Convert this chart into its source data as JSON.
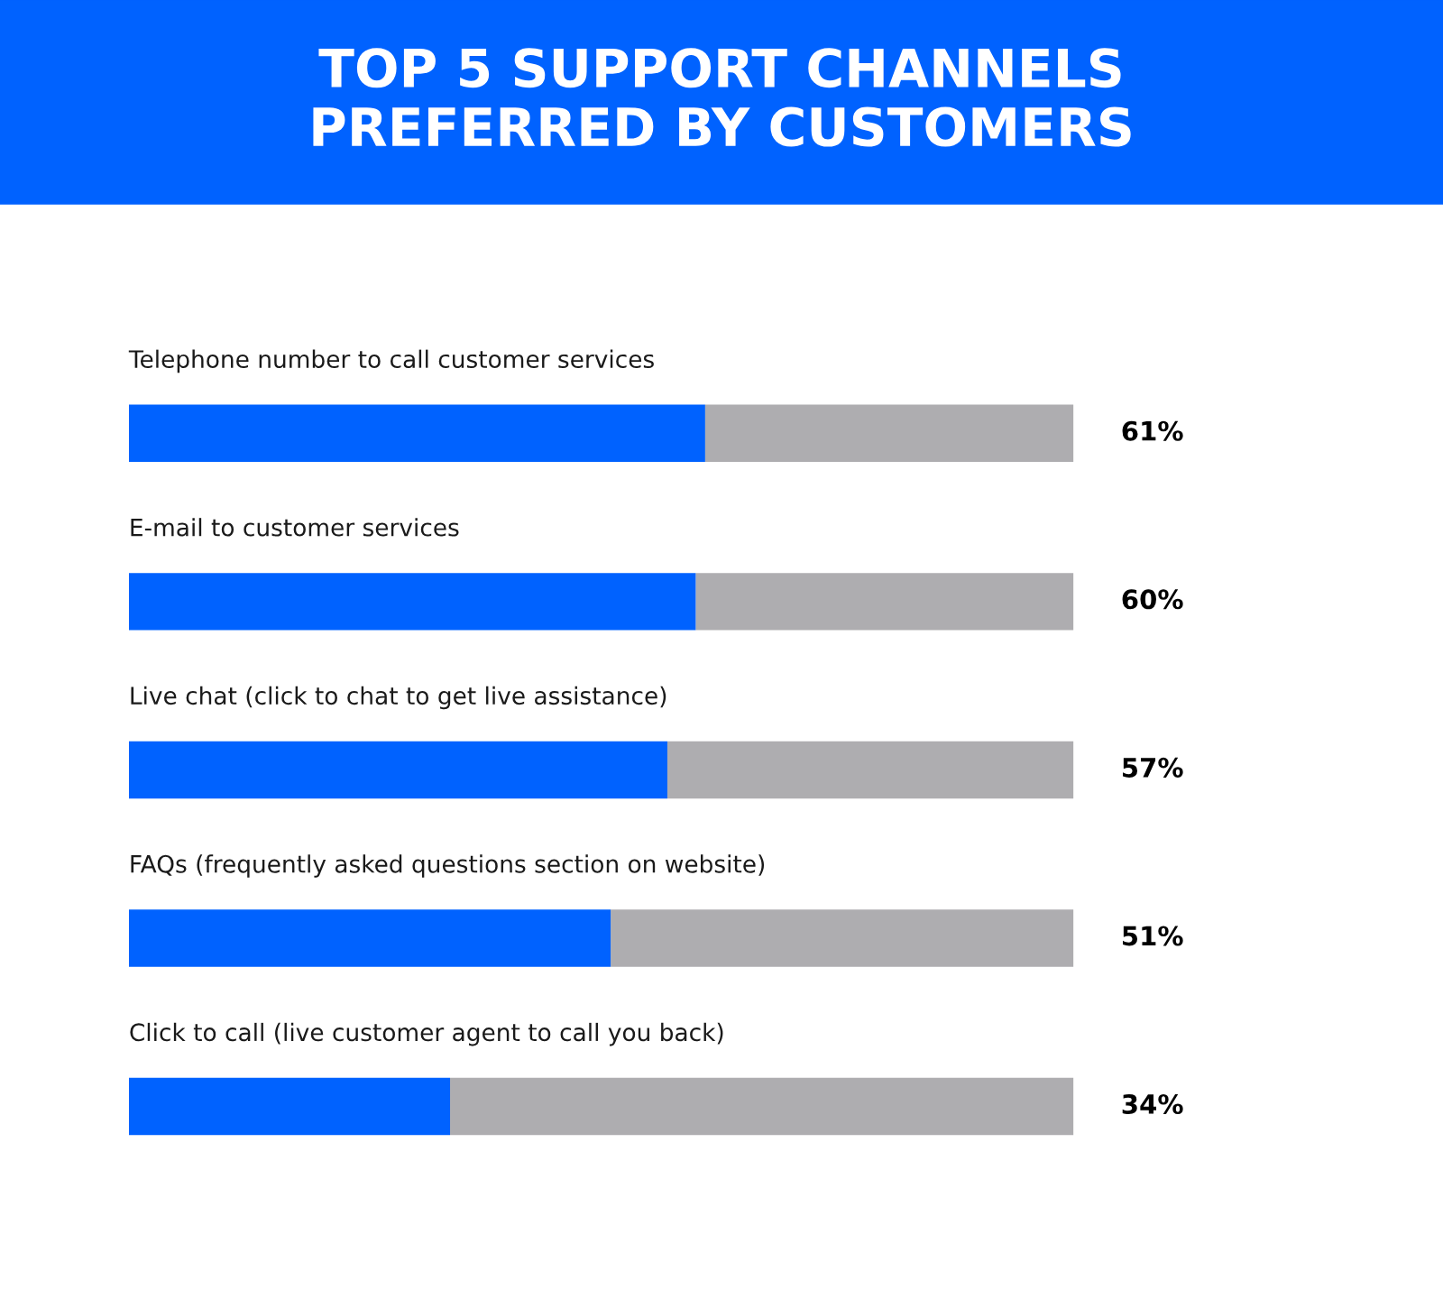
{
  "chart_data": {
    "type": "bar",
    "orientation": "horizontal",
    "stacked": true,
    "title": "TOP 5 SUPPORT CHANNELS\nPREFERRED BY CUSTOMERS",
    "categories": [
      "Telephone number to call customer services",
      "E-mail to customer services",
      "Live chat (click to chat to get live assistance)",
      "FAQs (frequently asked questions section on website)",
      "Click to call (live customer agent to call you back)"
    ],
    "series": [
      {
        "color": "#0062ff",
        "values": [
          61,
          60,
          57,
          51,
          34
        ],
        "value_labels": [
          "61%",
          "60%",
          "57%",
          "51%",
          "34%"
        ]
      },
      {
        "color": "#aeadb0",
        "values": [
          39,
          40,
          43,
          49,
          66
        ]
      }
    ],
    "xlim": [
      0,
      100
    ],
    "tick_labels": false,
    "legend": false
  }
}
